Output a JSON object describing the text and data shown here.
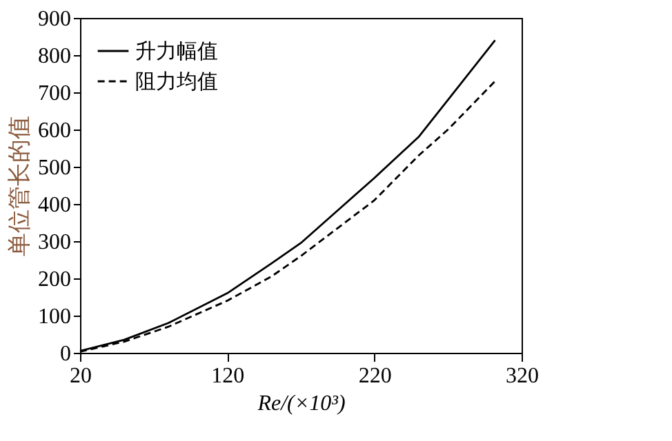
{
  "chart_data": {
    "type": "line",
    "xlabel": "Re/(×10³)",
    "ylabel": "单位管长的值",
    "xlim": [
      20,
      320
    ],
    "xticks": [
      20,
      120,
      220,
      320
    ],
    "ylim": [
      0,
      900
    ],
    "yticks": [
      0,
      100,
      200,
      300,
      400,
      500,
      600,
      700,
      800,
      900
    ],
    "grid": false,
    "legend": "top left",
    "marker": "none",
    "series": [
      {
        "name": "升力幅值",
        "color": "#000000",
        "line_style": "solid",
        "x": [
          20,
          50,
          80,
          120,
          150,
          170,
          200,
          220,
          250,
          270,
          302
        ],
        "values": [
          5,
          35,
          80,
          160,
          240,
          295,
          400,
          470,
          580,
          680,
          840
        ]
      },
      {
        "name": "阻力均值",
        "color": "#000000",
        "line_style": "dashed",
        "x": [
          20,
          50,
          80,
          120,
          150,
          170,
          200,
          220,
          250,
          270,
          302
        ],
        "values": [
          3,
          30,
          70,
          140,
          205,
          260,
          350,
          410,
          530,
          600,
          730
        ]
      }
    ]
  }
}
